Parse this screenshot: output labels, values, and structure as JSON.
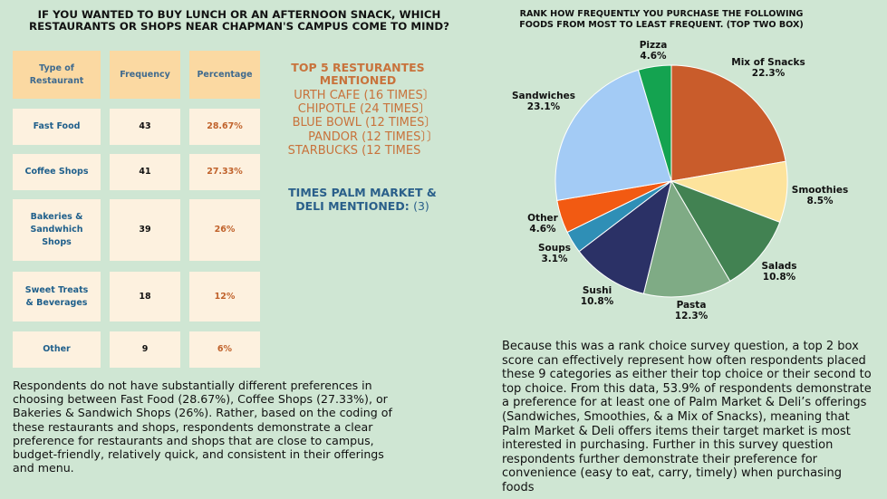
{
  "left": {
    "title_line1": "IF YOU WANTED TO BUY LUNCH OR AN AFTERNOON SNACK, WHICH",
    "title_line2": "RESTAURANTS OR SHOPS NEAR CHAPMAN'S CAMPUS COME TO MIND?",
    "table": {
      "headers": [
        "Type of Restaurant",
        "Frequency",
        "Percentage"
      ],
      "rows": [
        {
          "type": "Fast Food",
          "frequency": "43",
          "percentage": "28.67%"
        },
        {
          "type": "Coffee Shops",
          "frequency": "41",
          "percentage": "27.33%"
        },
        {
          "type": "Bakeries & Sandwhich Shops",
          "frequency": "39",
          "percentage": "26%"
        },
        {
          "type": "Sweet Treats & Beverages",
          "frequency": "18",
          "percentage": "12%"
        },
        {
          "type": "Other",
          "frequency": "9",
          "percentage": "6%"
        }
      ]
    },
    "top5": {
      "title": "TOP 5 RESTURANTES MENTIONED",
      "items": [
        "URTH CAFE (16 TIMES〕",
        "CHIPOTLE (24 TIMES〕",
        "BLUE BOWL (12 TIMES〕",
        "PANDOR (12 TIMES〕〕",
        "STARBUCKS (12 TIMES"
      ]
    },
    "palm": {
      "label": "TIMES PALM MARKET & DELI MENTIONED:",
      "count": "(3)"
    },
    "paragraph": "Respondents do not have substantially different preferences in choosing between Fast Food (28.67%), Coffee Shops (27.33%), or Bakeries & Sandwich Shops (26%). Rather, based on the coding of these restaurants and shops, respondents demonstrate a clear preference for restaurants and shops that are close to campus, budget-friendly, relatively quick, and consistent in their offerings and menu."
  },
  "right": {
    "paragraph": "Because this was a rank choice survey question, a top 2 box score can effectively represent how often respondents placed these 9 categories as either their top choice or their second to top choice. From this data, 53.9% of respondents demonstrate a preference for at least one of Palm Market & Deli’s offerings (Sandwiches, Smoothies, & a Mix of Snacks), meaning that Palm Market & Deli offers items their target market is most interested in purchasing. Further in this survey question respondents further demonstrate their preference for convenience (easy to eat, carry, timely) when purchasing foods"
  },
  "chart_data": {
    "type": "pie",
    "title": "RANK HOW FREQUENTLY YOU PURCHASE THE FOLLOWING FOODS FROM MOST TO LEAST FREQUENT. (TOP TWO BOX)",
    "title_line1": "RANK HOW FREQUENTLY YOU PURCHASE THE FOLLOWING",
    "title_line2": "FOODS FROM MOST TO LEAST FREQUENT. (TOP TWO BOX)",
    "start": "12 o'clock, clockwise",
    "slices": [
      {
        "name": "Mix of Snacks",
        "value": 22.3,
        "label": "22.3%",
        "color": "#c95c2b"
      },
      {
        "name": "Smoothies",
        "value": 8.5,
        "label": "8.5%",
        "color": "#fde39c"
      },
      {
        "name": "Salads",
        "value": 10.8,
        "label": "10.8%",
        "color": "#428252"
      },
      {
        "name": "Pasta",
        "value": 12.3,
        "label": "12.3%",
        "color": "#7fab85"
      },
      {
        "name": "Sushi",
        "value": 10.8,
        "label": "10.8%",
        "color": "#2b3166"
      },
      {
        "name": "Soups",
        "value": 3.1,
        "label": "3.1%",
        "color": "#2f8fb6"
      },
      {
        "name": "Other",
        "value": 4.6,
        "label": "4.6%",
        "color": "#f25a12"
      },
      {
        "name": "Sandwiches",
        "value": 23.1,
        "label": "23.1%",
        "color": "#a3cbf5"
      },
      {
        "name": "Pizza",
        "value": 4.6,
        "label": "4.6%",
        "color": "#14a350"
      }
    ]
  }
}
